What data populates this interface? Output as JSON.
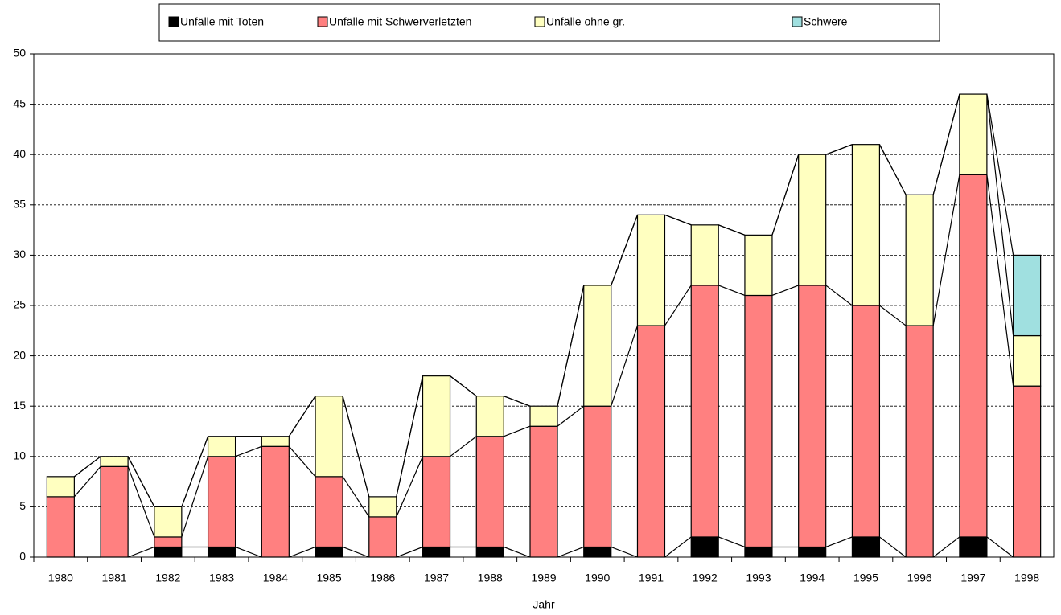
{
  "chart_data": {
    "type": "stacked_bar",
    "x_label": "Jahr",
    "categories": [
      "1980",
      "1981",
      "1982",
      "1983",
      "1984",
      "1985",
      "1986",
      "1987",
      "1988",
      "1989",
      "1990",
      "1991",
      "1992",
      "1993",
      "1994",
      "1995",
      "1996",
      "1997",
      "1998"
    ],
    "series": [
      {
        "name": "Unfälle mit Toten",
        "color": "#000000",
        "values": [
          0,
          0,
          1,
          1,
          0,
          1,
          0,
          1,
          1,
          0,
          1,
          0,
          2,
          1,
          1,
          2,
          0,
          2,
          0
        ]
      },
      {
        "name": "Unfälle mit Schwerverletzten",
        "color": "#ff8080",
        "values": [
          6,
          9,
          1,
          9,
          11,
          7,
          4,
          9,
          11,
          13,
          14,
          23,
          25,
          25,
          26,
          23,
          23,
          36,
          17
        ]
      },
      {
        "name": "Unfälle ohne gr.",
        "color": "#ffffc0",
        "values": [
          2,
          1,
          3,
          2,
          1,
          8,
          2,
          8,
          4,
          2,
          12,
          11,
          6,
          6,
          13,
          16,
          13,
          8,
          5
        ]
      },
      {
        "name": "Schwere",
        "color": "#a0e0e0",
        "values": [
          0,
          0,
          0,
          0,
          0,
          0,
          0,
          0,
          0,
          0,
          0,
          0,
          0,
          0,
          0,
          0,
          0,
          0,
          8
        ]
      }
    ],
    "ylim": [
      0,
      50
    ],
    "yticks": [
      0,
      5,
      10,
      15,
      20,
      25,
      30,
      35,
      40,
      45,
      50
    ],
    "grid": true,
    "legend": "top"
  }
}
